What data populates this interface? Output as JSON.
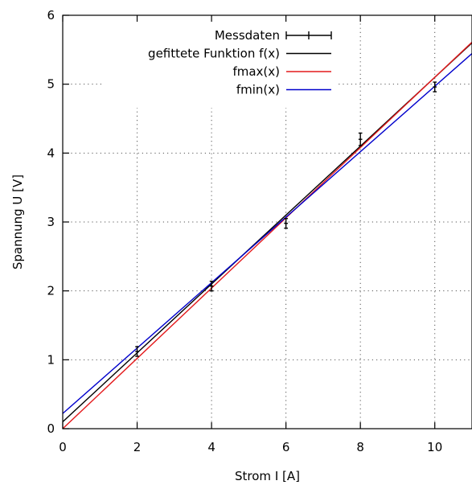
{
  "chart_data": {
    "type": "line",
    "title": "",
    "xlabel": "Strom I [A]",
    "ylabel": "Spannung U [V]",
    "xlim": [
      0,
      11
    ],
    "ylim": [
      0,
      6
    ],
    "xticks": [
      0,
      2,
      4,
      6,
      8,
      10
    ],
    "yticks": [
      0,
      1,
      2,
      3,
      4,
      5,
      6
    ],
    "grid": true,
    "legend_position": "top-right",
    "measurements": {
      "name": "Messdaten",
      "color": "#000000",
      "x": [
        2,
        4,
        6,
        8,
        10
      ],
      "y": [
        1.12,
        2.07,
        2.98,
        4.2,
        4.96
      ],
      "yerr": [
        0.07,
        0.07,
        0.07,
        0.09,
        0.07
      ],
      "xerr": [
        0.05,
        0.05,
        0.05,
        0.05,
        0.05
      ]
    },
    "series": [
      {
        "name": "gefittete Funktion f(x)",
        "color": "#000000",
        "slope": 0.5,
        "intercept": 0.1
      },
      {
        "name": "fmax(x)",
        "color": "#e41a1c",
        "slope": 0.51,
        "intercept": 0.0
      },
      {
        "name": "fmin(x)",
        "color": "#0000cc",
        "slope": 0.475,
        "intercept": 0.22
      }
    ]
  }
}
